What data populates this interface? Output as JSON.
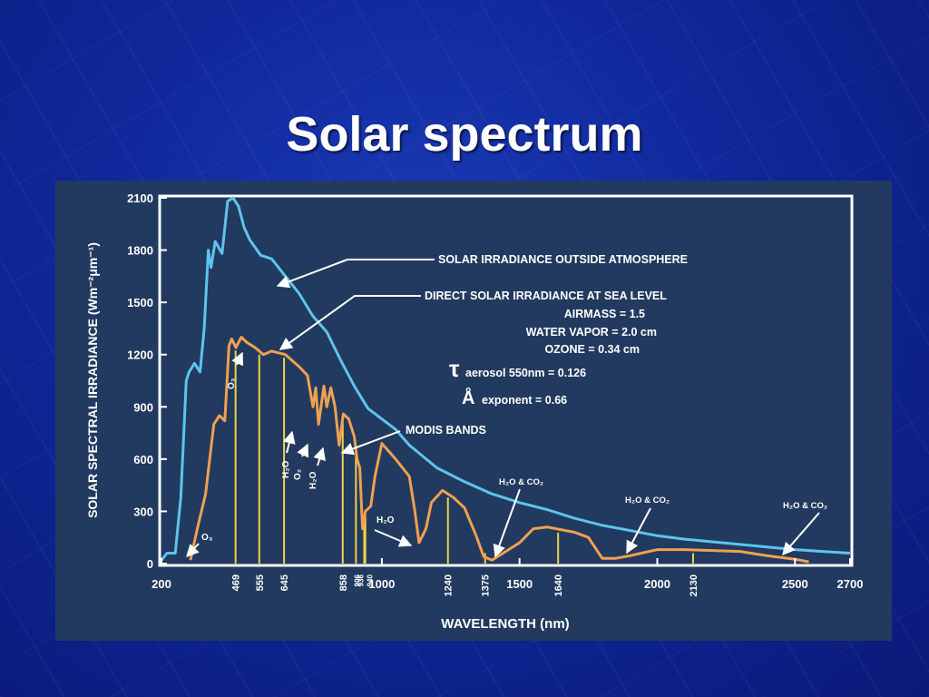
{
  "slide": {
    "title": "Solar spectrum"
  },
  "colors": {
    "slide_background": "#10279a",
    "chart_panel": "#223a5f",
    "outside_atmosphere_line": "#5ec4ec",
    "sea_level_line": "#f0a050",
    "modis_band_line": "#ecd24a",
    "text": "#ffffff"
  },
  "chart_data": {
    "type": "line",
    "xlabel": "WAVELENGTH (nm)",
    "ylabel": "SOLAR SPECTRAL IRRADIANCE (Wm⁻²μm⁻¹)",
    "xlim": [
      200,
      2700
    ],
    "ylim": [
      0,
      2100
    ],
    "x_ticks": [
      200,
      1000,
      1500,
      2000,
      2500,
      2700
    ],
    "y_ticks": [
      0,
      300,
      600,
      900,
      1200,
      1500,
      1800,
      2100
    ],
    "series": [
      {
        "name": "SOLAR IRRADIANCE OUTSIDE ATMOSPHERE",
        "points": [
          [
            200,
            20
          ],
          [
            220,
            60
          ],
          [
            250,
            60
          ],
          [
            270,
            380
          ],
          [
            290,
            1050
          ],
          [
            300,
            1100
          ],
          [
            320,
            1150
          ],
          [
            340,
            1100
          ],
          [
            355,
            1350
          ],
          [
            370,
            1800
          ],
          [
            380,
            1700
          ],
          [
            395,
            1850
          ],
          [
            420,
            1780
          ],
          [
            440,
            2080
          ],
          [
            460,
            2100
          ],
          [
            480,
            2050
          ],
          [
            500,
            1930
          ],
          [
            520,
            1860
          ],
          [
            560,
            1770
          ],
          [
            600,
            1750
          ],
          [
            650,
            1650
          ],
          [
            700,
            1550
          ],
          [
            750,
            1420
          ],
          [
            800,
            1330
          ],
          [
            850,
            1170
          ],
          [
            900,
            1020
          ],
          [
            950,
            890
          ],
          [
            1000,
            830
          ],
          [
            1050,
            770
          ],
          [
            1100,
            680
          ],
          [
            1200,
            550
          ],
          [
            1300,
            470
          ],
          [
            1400,
            400
          ],
          [
            1500,
            350
          ],
          [
            1600,
            310
          ],
          [
            1700,
            260
          ],
          [
            1800,
            220
          ],
          [
            1900,
            190
          ],
          [
            2000,
            160
          ],
          [
            2100,
            140
          ],
          [
            2200,
            125
          ],
          [
            2300,
            110
          ],
          [
            2400,
            95
          ],
          [
            2500,
            80
          ],
          [
            2600,
            70
          ],
          [
            2700,
            60
          ]
        ]
      },
      {
        "name": "DIRECT SOLAR IRRADIANCE AT SEA LEVEL",
        "points": [
          [
            305,
            20
          ],
          [
            330,
            200
          ],
          [
            360,
            400
          ],
          [
            390,
            800
          ],
          [
            410,
            850
          ],
          [
            430,
            820
          ],
          [
            445,
            1250
          ],
          [
            455,
            1290
          ],
          [
            470,
            1240
          ],
          [
            490,
            1300
          ],
          [
            510,
            1270
          ],
          [
            540,
            1240
          ],
          [
            570,
            1200
          ],
          [
            600,
            1220
          ],
          [
            650,
            1200
          ],
          [
            700,
            1130
          ],
          [
            730,
            1080
          ],
          [
            750,
            900
          ],
          [
            760,
            1010
          ],
          [
            770,
            800
          ],
          [
            790,
            1020
          ],
          [
            800,
            900
          ],
          [
            815,
            1010
          ],
          [
            830,
            900
          ],
          [
            845,
            680
          ],
          [
            860,
            860
          ],
          [
            880,
            830
          ],
          [
            900,
            730
          ],
          [
            910,
            600
          ],
          [
            920,
            550
          ],
          [
            930,
            200
          ],
          [
            940,
            300
          ],
          [
            960,
            330
          ],
          [
            975,
            500
          ],
          [
            1000,
            690
          ],
          [
            1050,
            600
          ],
          [
            1100,
            500
          ],
          [
            1120,
            300
          ],
          [
            1135,
            120
          ],
          [
            1160,
            200
          ],
          [
            1180,
            350
          ],
          [
            1220,
            420
          ],
          [
            1260,
            380
          ],
          [
            1300,
            320
          ],
          [
            1340,
            170
          ],
          [
            1370,
            40
          ],
          [
            1400,
            20
          ],
          [
            1450,
            70
          ],
          [
            1500,
            120
          ],
          [
            1550,
            200
          ],
          [
            1600,
            210
          ],
          [
            1700,
            180
          ],
          [
            1750,
            150
          ],
          [
            1800,
            30
          ],
          [
            1850,
            30
          ],
          [
            1900,
            45
          ],
          [
            2000,
            80
          ],
          [
            2100,
            80
          ],
          [
            2200,
            75
          ],
          [
            2300,
            70
          ],
          [
            2400,
            45
          ],
          [
            2500,
            25
          ],
          [
            2550,
            10
          ]
        ]
      }
    ],
    "modis_bands": [
      469,
      555,
      645,
      858,
      906,
      936,
      940,
      1240,
      1375,
      1640,
      2130
    ],
    "band_label_note": "MODIS BANDS",
    "annotations": {
      "airmass": "AIRMASS = 1.5",
      "water_vapor": "WATER VAPOR = 2.0 cm",
      "ozone": "OZONE = 0.34 cm",
      "tau_symbol": "τ",
      "tau": "aerosol 550nm = 0.126",
      "angstrom_symbol": "Å",
      "angstrom": "exponent = 0.66",
      "o3": "O₃",
      "h2o": "H₂O",
      "o2": "O₂",
      "h2o_co2": "H₂O & CO₂"
    }
  }
}
